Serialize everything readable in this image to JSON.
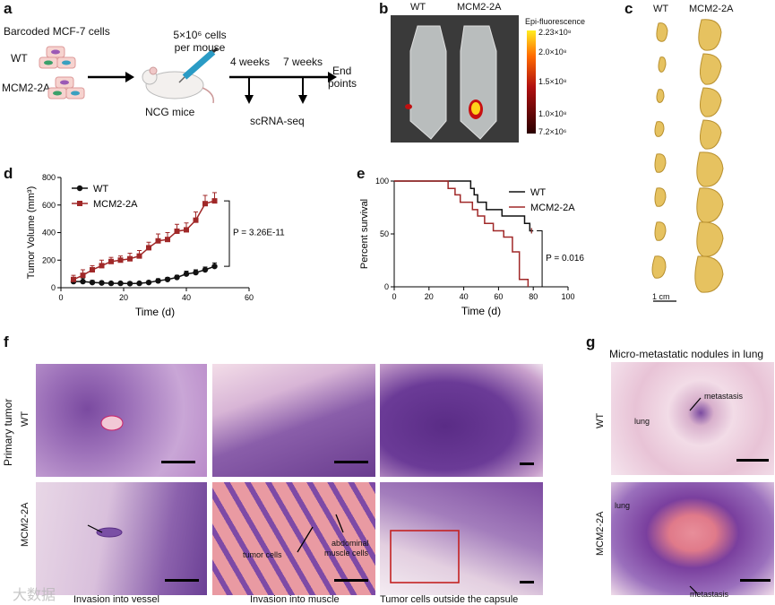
{
  "panel_labels": {
    "a": "a",
    "b": "b",
    "c": "c",
    "d": "d",
    "e": "e",
    "f": "f",
    "g": "g"
  },
  "panel_a": {
    "title": "Barcoded MCF-7 cells",
    "wt": "WT",
    "mut": "MCM2-2A",
    "cells_line1": "5×10⁶ cells",
    "cells_line2": "per mouse",
    "mice": "NCG mice",
    "t1": "4 weeks",
    "t2": "7 weeks",
    "end1": "End",
    "end2": "points",
    "scrna": "scRNA-seq"
  },
  "panel_b": {
    "wt": "WT",
    "mut": "MCM2-2A",
    "colorbar_title": "Epi-fluorescence",
    "colorbar_ticks": [
      "2.23×10⁸",
      "2.0×10⁸",
      "1.5×10⁸",
      "1.0×10⁸",
      "7.2×10⁶"
    ],
    "colors": {
      "low": "#2a0000",
      "mid": "#b01010",
      "high": "#ffee22"
    }
  },
  "panel_c": {
    "wt": "WT",
    "mut": "MCM2-2A",
    "scale": "1 cm"
  },
  "panel_f": {
    "row_group": "Primary tumor",
    "row_wt": "WT",
    "row_mut": "MCM2-2A",
    "captions": [
      "Invasion into vessel",
      "Invasion into muscle",
      "Tumor cells outside the capsule"
    ],
    "annot_tumor": "tumor cells",
    "annot_muscle1": "abdominal",
    "annot_muscle2": "muscle cells"
  },
  "panel_g": {
    "title": "Micro-metastatic nodules in lung",
    "row_wt": "WT",
    "row_mut": "MCM2-2A",
    "lung": "lung",
    "metastasis": "metastasis"
  },
  "watermark": "大数据",
  "chart_data": [
    {
      "type": "line",
      "panel": "d",
      "ylabel": "Tumor Volume (mm³)",
      "xlabel": "Time (d)",
      "xlim": [
        0,
        60
      ],
      "ylim": [
        0,
        800
      ],
      "xticks": [
        0,
        20,
        40,
        60
      ],
      "yticks": [
        0,
        200,
        400,
        600,
        800
      ],
      "annotation": "P = 3.26E-11",
      "legend_position": "top-left",
      "series": [
        {
          "name": "WT",
          "color": "#111111",
          "marker": "circle",
          "x": [
            4,
            7,
            10,
            13,
            16,
            19,
            22,
            25,
            28,
            31,
            34,
            37,
            40,
            43,
            46,
            49
          ],
          "y": [
            45,
            45,
            38,
            35,
            32,
            32,
            30,
            32,
            38,
            50,
            60,
            75,
            100,
            110,
            130,
            155
          ],
          "err": [
            25,
            25,
            15,
            12,
            10,
            10,
            10,
            10,
            12,
            15,
            15,
            15,
            20,
            20,
            20,
            25
          ]
        },
        {
          "name": "MCM2-2A",
          "color": "#a02828",
          "marker": "square",
          "x": [
            4,
            7,
            10,
            13,
            16,
            19,
            22,
            25,
            28,
            31,
            34,
            37,
            40,
            43,
            46,
            49
          ],
          "y": [
            60,
            90,
            130,
            160,
            190,
            200,
            210,
            230,
            290,
            340,
            350,
            410,
            420,
            490,
            610,
            630
          ],
          "err": [
            30,
            40,
            30,
            40,
            30,
            30,
            40,
            40,
            40,
            50,
            50,
            50,
            50,
            60,
            60,
            60
          ]
        }
      ]
    },
    {
      "type": "line",
      "panel": "e",
      "ylabel": "Percent survival",
      "xlabel": "Time (d)",
      "xlim": [
        0,
        100
      ],
      "ylim": [
        0,
        100
      ],
      "xticks": [
        0,
        20,
        40,
        60,
        80,
        100
      ],
      "yticks": [
        0,
        50,
        100
      ],
      "annotation": "P = 0.016",
      "legend_position": "top-right",
      "series": [
        {
          "name": "WT",
          "color": "#111111",
          "step": true,
          "x": [
            0,
            42,
            44,
            46,
            48,
            50,
            53,
            58,
            62,
            68,
            75,
            78,
            80,
            80
          ],
          "y": [
            100,
            100,
            93,
            87,
            80,
            80,
            73,
            73,
            67,
            67,
            60,
            53,
            53,
            53
          ]
        },
        {
          "name": "MCM2-2A",
          "color": "#a02828",
          "step": true,
          "x": [
            0,
            30,
            31,
            35,
            38,
            45,
            48,
            52,
            57,
            63,
            68,
            72,
            77
          ],
          "y": [
            100,
            100,
            93,
            87,
            80,
            73,
            67,
            60,
            53,
            47,
            33,
            7,
            0
          ]
        }
      ]
    }
  ]
}
